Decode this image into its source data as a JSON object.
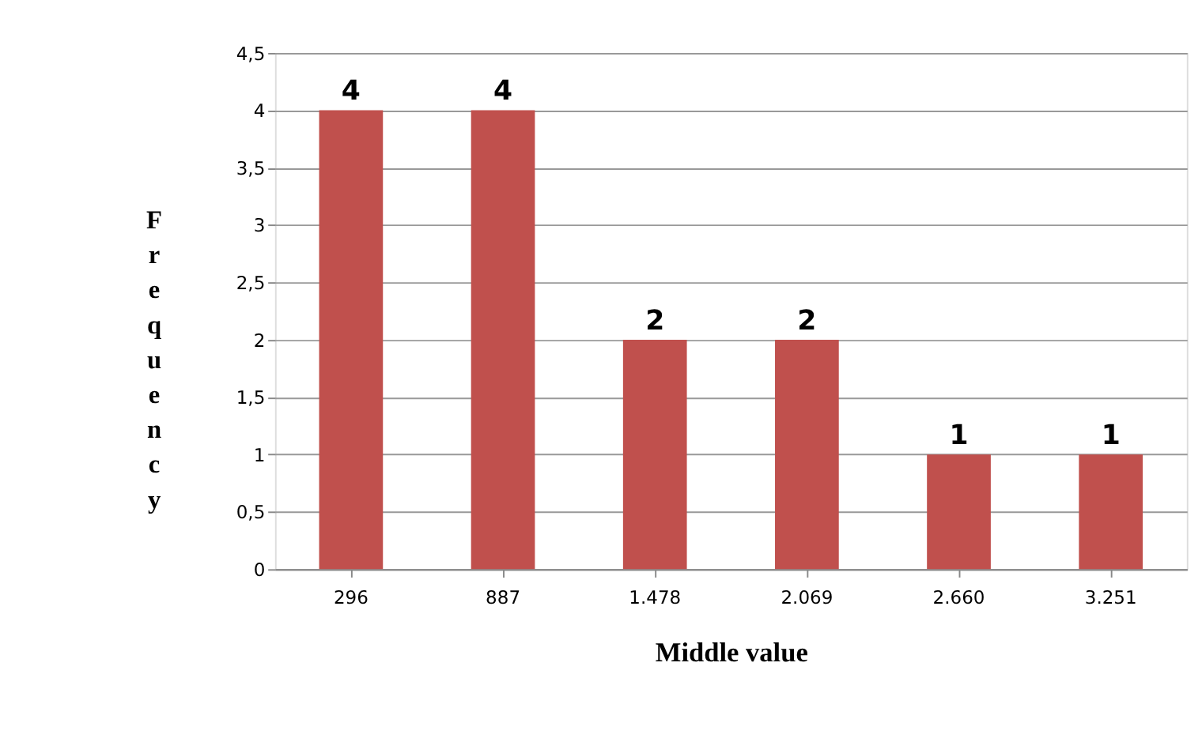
{
  "chart_data": {
    "type": "bar",
    "xlabel": "Middle value",
    "ylabel": "Frequency",
    "categories": [
      "296",
      "887",
      "1.478",
      "2.069",
      "2.660",
      "3.251"
    ],
    "values": [
      4,
      4,
      2,
      2,
      1,
      1
    ],
    "color": "#c0504d",
    "ylim": [
      0,
      4.5
    ],
    "yticks": [
      0,
      {
        "value": 0.5,
        "label": "0,5"
      },
      1,
      {
        "value": 1.5,
        "label": "1,5"
      },
      2,
      {
        "value": 2.5,
        "label": "2,5"
      },
      3,
      {
        "value": 3.5,
        "label": "3,5"
      },
      4,
      {
        "value": 4.5,
        "label": "4,5"
      }
    ],
    "grid": "y",
    "data_labels": true
  }
}
